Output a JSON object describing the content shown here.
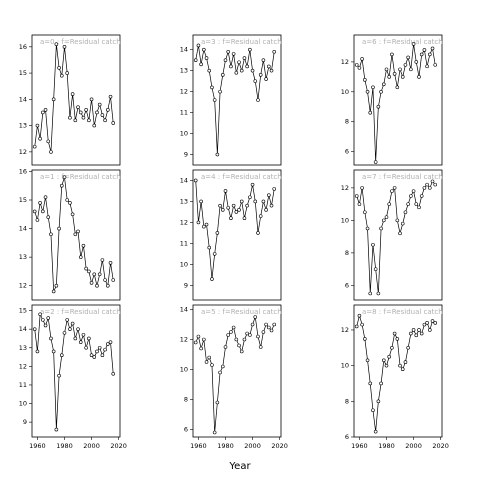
{
  "xlabel": "Year",
  "chart_data": [
    {
      "type": "line",
      "title": "a=0 : f=Residual catch",
      "x": [
        1958,
        1960,
        1962,
        1964,
        1966,
        1968,
        1970,
        1972,
        1974,
        1976,
        1978,
        1980,
        1982,
        1984,
        1986,
        1988,
        1990,
        1992,
        1994,
        1996,
        1998,
        2000,
        2002,
        2004,
        2006,
        2008,
        2010,
        2012,
        2014,
        2016
      ],
      "values": [
        12.2,
        13.0,
        12.5,
        13.5,
        13.6,
        12.4,
        12.0,
        14.0,
        16.1,
        15.2,
        14.9,
        16.0,
        15.0,
        13.3,
        14.2,
        13.2,
        13.7,
        13.5,
        13.3,
        13.6,
        13.2,
        14.0,
        13.0,
        13.5,
        13.8,
        13.4,
        13.2,
        13.6,
        14.1,
        13.1
      ],
      "xlim": [
        1956,
        2021
      ],
      "ylim": [
        11.5,
        16.45
      ],
      "yticks": [
        12,
        13,
        14,
        15,
        16
      ],
      "color": "#000000"
    },
    {
      "type": "line",
      "title": "a=1 : f=Residual catch",
      "x": [
        1958,
        1960,
        1962,
        1964,
        1966,
        1968,
        1970,
        1972,
        1974,
        1976,
        1978,
        1980,
        1982,
        1984,
        1986,
        1988,
        1990,
        1992,
        1994,
        1996,
        1998,
        2000,
        2002,
        2004,
        2006,
        2008,
        2010,
        2012,
        2014,
        2016
      ],
      "values": [
        14.6,
        14.3,
        14.9,
        14.6,
        15.1,
        14.4,
        13.8,
        11.8,
        12.0,
        14.0,
        15.5,
        15.8,
        15.0,
        14.9,
        14.5,
        13.8,
        13.9,
        13.0,
        13.4,
        12.6,
        12.5,
        12.1,
        12.4,
        12.0,
        12.4,
        12.9,
        12.2,
        12.0,
        12.8,
        12.2
      ],
      "xlim": [
        1956,
        2021
      ],
      "ylim": [
        11.5,
        16.05
      ],
      "yticks": [
        12,
        13,
        14,
        15,
        16
      ],
      "color": "#000000"
    },
    {
      "type": "line",
      "title": "a=2 : f=Residual catch",
      "x": [
        1958,
        1960,
        1962,
        1964,
        1966,
        1968,
        1970,
        1972,
        1974,
        1976,
        1978,
        1980,
        1982,
        1984,
        1986,
        1988,
        1990,
        1992,
        1994,
        1996,
        1998,
        2000,
        2002,
        2004,
        2006,
        2008,
        2010,
        2012,
        2014,
        2016
      ],
      "values": [
        14.0,
        12.8,
        14.8,
        14.5,
        14.2,
        14.6,
        13.5,
        12.8,
        8.6,
        11.5,
        12.6,
        13.8,
        14.5,
        14.0,
        14.3,
        13.5,
        14.0,
        13.3,
        13.7,
        13.0,
        13.5,
        12.6,
        12.5,
        12.8,
        13.0,
        12.6,
        12.9,
        13.2,
        13.3,
        11.6
      ],
      "xlim": [
        1956,
        2021
      ],
      "xticks": [
        1960,
        1980,
        2000,
        2020
      ],
      "ylim": [
        8.2,
        15.3
      ],
      "yticks": [
        9,
        10,
        11,
        12,
        13,
        14,
        15
      ],
      "color": "#000000"
    },
    {
      "type": "line",
      "title": "a=3 : f=Residual catch",
      "x": [
        1958,
        1960,
        1962,
        1964,
        1966,
        1968,
        1970,
        1972,
        1974,
        1976,
        1978,
        1980,
        1982,
        1984,
        1986,
        1988,
        1990,
        1992,
        1994,
        1996,
        1998,
        2000,
        2002,
        2004,
        2006,
        2008,
        2010,
        2012,
        2014,
        2016
      ],
      "values": [
        13.5,
        14.2,
        13.3,
        14.0,
        13.6,
        13.0,
        12.2,
        11.6,
        9.0,
        12.0,
        12.8,
        13.5,
        13.9,
        13.2,
        13.8,
        12.9,
        13.4,
        13.0,
        13.6,
        13.2,
        14.0,
        13.0,
        12.5,
        11.6,
        12.8,
        13.5,
        12.6,
        13.2,
        13.0,
        13.9
      ],
      "xlim": [
        1956,
        2021
      ],
      "ylim": [
        8.5,
        14.7
      ],
      "yticks": [
        9,
        10,
        11,
        12,
        13,
        14
      ],
      "color": "#000000"
    },
    {
      "type": "line",
      "title": "a=4 : f=Residual catch",
      "x": [
        1958,
        1960,
        1962,
        1964,
        1966,
        1968,
        1970,
        1972,
        1974,
        1976,
        1978,
        1980,
        1982,
        1984,
        1986,
        1988,
        1990,
        1992,
        1994,
        1996,
        1998,
        2000,
        2002,
        2004,
        2006,
        2008,
        2010,
        2012,
        2014,
        2016
      ],
      "values": [
        14.0,
        12.0,
        13.0,
        11.8,
        11.9,
        10.8,
        9.3,
        10.5,
        11.5,
        12.8,
        12.6,
        13.5,
        12.7,
        12.2,
        12.8,
        12.5,
        12.6,
        13.0,
        12.2,
        12.8,
        13.2,
        13.8,
        13.0,
        11.5,
        12.3,
        13.0,
        12.6,
        13.3,
        12.8,
        13.6
      ],
      "xlim": [
        1956,
        2021
      ],
      "ylim": [
        8.3,
        14.5
      ],
      "yticks": [
        9,
        10,
        11,
        12,
        13,
        14
      ],
      "color": "#000000"
    },
    {
      "type": "line",
      "title": "a=5 : f=Residual catch",
      "x": [
        1958,
        1960,
        1962,
        1964,
        1966,
        1968,
        1970,
        1972,
        1974,
        1976,
        1978,
        1980,
        1982,
        1984,
        1986,
        1988,
        1990,
        1992,
        1994,
        1996,
        1998,
        2000,
        2002,
        2004,
        2006,
        2008,
        2010,
        2012,
        2014,
        2016
      ],
      "values": [
        11.8,
        12.2,
        11.4,
        12.0,
        10.5,
        10.8,
        10.3,
        5.8,
        7.8,
        9.8,
        10.2,
        11.5,
        12.3,
        12.5,
        12.8,
        12.0,
        11.6,
        11.2,
        12.0,
        12.4,
        12.3,
        13.0,
        13.5,
        12.2,
        11.5,
        12.5,
        13.0,
        12.8,
        12.6,
        13.0
      ],
      "xlim": [
        1956,
        2021
      ],
      "xticks": [
        1960,
        1980,
        2000,
        2020
      ],
      "ylim": [
        5.5,
        14.3
      ],
      "yticks": [
        6,
        8,
        10,
        12,
        14
      ],
      "color": "#000000"
    },
    {
      "type": "line",
      "title": "a=6 : f=Residual catch",
      "x": [
        1958,
        1960,
        1962,
        1964,
        1966,
        1968,
        1970,
        1972,
        1974,
        1976,
        1978,
        1980,
        1982,
        1984,
        1986,
        1988,
        1990,
        1992,
        1994,
        1996,
        1998,
        2000,
        2002,
        2004,
        2006,
        2008,
        2010,
        2012,
        2014,
        2016
      ],
      "values": [
        11.8,
        11.6,
        12.2,
        10.8,
        10.0,
        8.6,
        10.3,
        5.3,
        9.0,
        10.0,
        10.5,
        11.5,
        11.0,
        12.5,
        11.2,
        10.3,
        11.5,
        11.0,
        11.8,
        12.3,
        11.5,
        13.2,
        12.0,
        11.0,
        12.5,
        12.8,
        11.7,
        12.5,
        12.9,
        11.8
      ],
      "xlim": [
        1956,
        2021
      ],
      "ylim": [
        5.1,
        13.8
      ],
      "yticks": [
        6,
        8,
        10,
        12
      ],
      "color": "#000000"
    },
    {
      "type": "line",
      "title": "a=7 : f=Residual catch",
      "x": [
        1958,
        1960,
        1962,
        1964,
        1966,
        1968,
        1970,
        1972,
        1974,
        1976,
        1978,
        1980,
        1982,
        1984,
        1986,
        1988,
        1990,
        1992,
        1994,
        1996,
        1998,
        2000,
        2002,
        2004,
        2006,
        2008,
        2010,
        2012,
        2014,
        2016
      ],
      "values": [
        11.5,
        11.0,
        12.0,
        10.5,
        9.5,
        5.5,
        8.5,
        7.0,
        5.5,
        9.5,
        10.0,
        10.2,
        11.0,
        11.8,
        12.0,
        10.0,
        9.2,
        9.8,
        10.5,
        11.0,
        11.5,
        11.8,
        11.0,
        10.8,
        11.5,
        12.0,
        12.2,
        12.0,
        12.4,
        12.2
      ],
      "xlim": [
        1956,
        2021
      ],
      "ylim": [
        5.1,
        13.1
      ],
      "yticks": [
        6,
        8,
        10,
        12
      ],
      "color": "#000000"
    },
    {
      "type": "line",
      "title": "a=8 : f=Residual catch",
      "x": [
        1958,
        1960,
        1962,
        1964,
        1966,
        1968,
        1970,
        1972,
        1974,
        1976,
        1978,
        1980,
        1982,
        1984,
        1986,
        1988,
        1990,
        1992,
        1994,
        1996,
        1998,
        2000,
        2002,
        2004,
        2006,
        2008,
        2010,
        2012,
        2014,
        2016
      ],
      "values": [
        12.2,
        12.8,
        12.3,
        11.5,
        10.3,
        9.0,
        7.5,
        6.3,
        8.0,
        9.0,
        10.3,
        10.0,
        10.5,
        11.0,
        11.8,
        11.5,
        10.0,
        9.8,
        10.2,
        11.0,
        11.8,
        12.0,
        11.7,
        12.0,
        11.8,
        12.3,
        12.4,
        12.0,
        12.5,
        12.4
      ],
      "xlim": [
        1956,
        2021
      ],
      "xticks": [
        1960,
        1980,
        2000,
        2020
      ],
      "ylim": [
        6.0,
        13.4
      ],
      "yticks": [
        6,
        8,
        10,
        12
      ],
      "color": "#000000"
    }
  ]
}
